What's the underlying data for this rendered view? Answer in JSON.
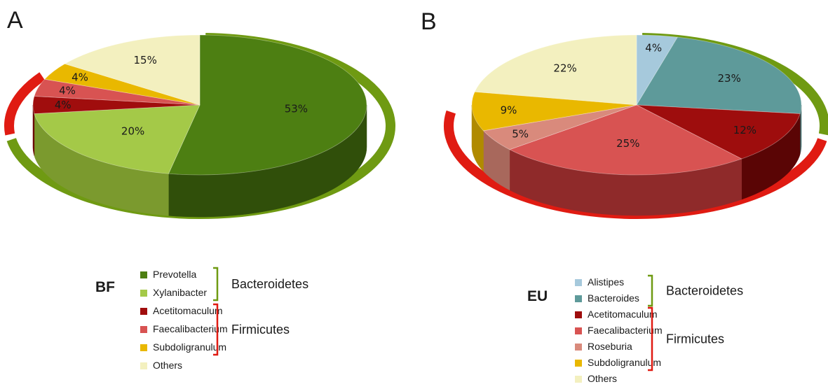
{
  "chart_data": [
    {
      "type": "pie",
      "panel": "A",
      "group": "BF",
      "slices": [
        {
          "label": "Prevotella",
          "value": 53,
          "color": "#4d7f12",
          "side": "#304f0a"
        },
        {
          "label": "Xylanibacter",
          "value": 20,
          "color": "#a4c948",
          "side": "#7b9a2e"
        },
        {
          "label": "Acetitomaculum",
          "value": 4,
          "color": "#a00d0d",
          "side": "#6a0606"
        },
        {
          "label": "Faecalibacterium",
          "value": 4,
          "color": "#d85352",
          "side": "#9c3231"
        },
        {
          "label": "Subdoligranulum",
          "value": 4,
          "color": "#e9b800",
          "side": "#b08a00"
        },
        {
          "label": "Others",
          "value": 15,
          "color": "#f3f0bf",
          "side": "#c9c596"
        }
      ],
      "value_labels": [
        "53%",
        "20%",
        "4%",
        "4%",
        "4%",
        "15%"
      ],
      "legend": [
        "Prevotella",
        "Xylanibacter",
        "Acetitomaculum",
        "Faecalibacterium",
        "Subdoligranulum",
        "Others"
      ],
      "phyla": [
        {
          "name": "Bacteroidetes",
          "members": [
            "Prevotella",
            "Xylanibacter"
          ],
          "color": "#6f9a12"
        },
        {
          "name": "Firmicutes",
          "members": [
            "Acetitomaculum",
            "Faecalibacterium",
            "Subdoligranulum"
          ],
          "color": "#e01b12"
        }
      ]
    },
    {
      "type": "pie",
      "panel": "B",
      "group": "EU",
      "slices": [
        {
          "label": "Alistipes",
          "value": 4,
          "color": "#a6c9dc",
          "side": "#7c9bab"
        },
        {
          "label": "Bacteroides",
          "value": 23,
          "color": "#5e9a9a",
          "side": "#3f6d6d"
        },
        {
          "label": "Acetitomaculum",
          "value": 12,
          "color": "#9e0d0d",
          "side": "#5a0505"
        },
        {
          "label": "Faecalibacterium",
          "value": 25,
          "color": "#d85352",
          "side": "#8f2a2a"
        },
        {
          "label": "Roseburia",
          "value": 5,
          "color": "#d98a7c",
          "side": "#a8685c"
        },
        {
          "label": "Subdoligranulum",
          "value": 9,
          "color": "#e9b800",
          "side": "#b08a00"
        },
        {
          "label": "Others",
          "value": 22,
          "color": "#f3f0bf",
          "side": "#c9c596"
        }
      ],
      "value_labels": [
        "4%",
        "23%",
        "12%",
        "25%",
        "5%",
        "9%",
        "22%"
      ],
      "legend": [
        "Alistipes",
        "Bacteroides",
        "Acetitomaculum",
        "Faecalibacterium",
        "Roseburia",
        "Subdoligranulum",
        "Others"
      ],
      "phyla": [
        {
          "name": "Bacteroidetes",
          "members": [
            "Alistipes",
            "Bacteroides"
          ],
          "color": "#6f9a12"
        },
        {
          "name": "Firmicutes",
          "members": [
            "Acetitomaculum",
            "Faecalibacterium",
            "Roseburia",
            "Subdoligranulum"
          ],
          "color": "#e01b12"
        }
      ]
    }
  ]
}
